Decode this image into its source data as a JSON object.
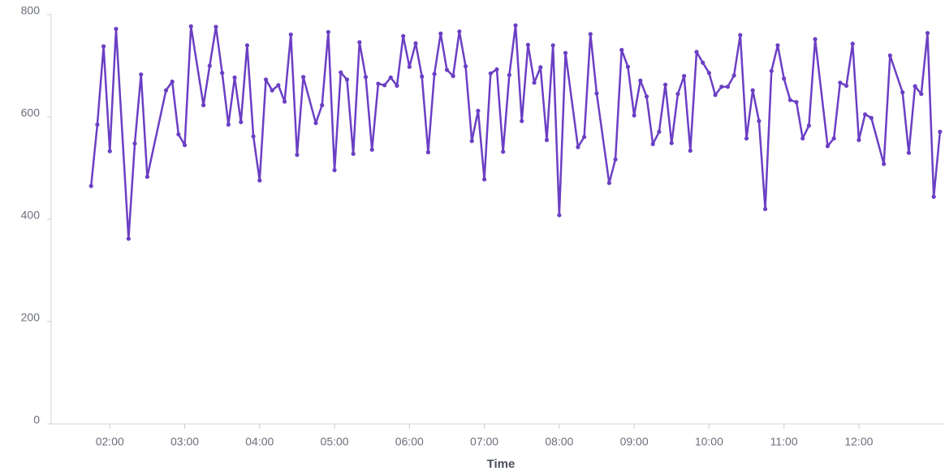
{
  "chart_data": {
    "type": "line",
    "x_label": "Time",
    "x": [
      "01:45",
      "01:50",
      "01:55",
      "02:00",
      "02:05",
      "02:15",
      "02:20",
      "02:25",
      "02:30",
      "02:45",
      "02:50",
      "02:55",
      "03:00",
      "03:05",
      "03:15",
      "03:20",
      "03:25",
      "03:30",
      "03:35",
      "03:40",
      "03:45",
      "03:50",
      "03:55",
      "04:00",
      "04:05",
      "04:10",
      "04:15",
      "04:20",
      "04:25",
      "04:30",
      "04:35",
      "04:45",
      "04:50",
      "04:55",
      "05:00",
      "05:05",
      "05:10",
      "05:15",
      "05:20",
      "05:25",
      "05:30",
      "05:35",
      "05:40",
      "05:45",
      "05:50",
      "05:55",
      "06:00",
      "06:05",
      "06:10",
      "06:15",
      "06:20",
      "06:25",
      "06:30",
      "06:35",
      "06:40",
      "06:45",
      "06:50",
      "06:55",
      "07:00",
      "07:05",
      "07:10",
      "07:15",
      "07:20",
      "07:25",
      "07:30",
      "07:35",
      "07:40",
      "07:45",
      "07:50",
      "07:55",
      "08:00",
      "08:05",
      "08:15",
      "08:20",
      "08:25",
      "08:30",
      "08:40",
      "08:45",
      "08:50",
      "08:55",
      "09:00",
      "09:05",
      "09:10",
      "09:15",
      "09:20",
      "09:25",
      "09:30",
      "09:35",
      "09:40",
      "09:45",
      "09:50",
      "09:55",
      "10:00",
      "10:05",
      "10:10",
      "10:15",
      "10:20",
      "10:25",
      "10:30",
      "10:35",
      "10:40",
      "10:45",
      "10:50",
      "10:55",
      "11:00",
      "11:05",
      "11:10",
      "11:15",
      "11:20",
      "11:25",
      "11:35",
      "11:40",
      "11:45",
      "11:50",
      "11:55",
      "12:00",
      "12:05",
      "12:10",
      "12:20",
      "12:25",
      "12:35",
      "12:40",
      "12:45",
      "12:50",
      "12:55",
      "13:00",
      "13:05"
    ],
    "values": [
      465,
      585,
      738,
      533,
      772,
      362,
      548,
      683,
      483,
      652,
      669,
      566,
      545,
      777,
      623,
      700,
      776,
      686,
      585,
      677,
      590,
      740,
      562,
      476,
      673,
      652,
      662,
      630,
      761,
      526,
      678,
      588,
      623,
      766,
      496,
      687,
      673,
      528,
      746,
      678,
      536,
      665,
      662,
      677,
      661,
      758,
      698,
      744,
      679,
      531,
      684,
      763,
      692,
      680,
      767,
      699,
      553,
      612,
      478,
      685,
      693,
      532,
      682,
      779,
      592,
      741,
      667,
      697,
      555,
      740,
      408,
      725,
      541,
      561,
      762,
      646,
      471,
      517,
      731,
      698,
      603,
      671,
      640,
      547,
      571,
      663,
      549,
      645,
      680,
      534,
      727,
      706,
      686,
      643,
      659,
      659,
      681,
      760,
      558,
      652,
      592,
      420,
      690,
      740,
      675,
      633,
      629,
      558,
      583,
      752,
      543,
      558,
      667,
      661,
      743,
      555,
      605,
      598,
      508,
      720,
      648,
      530,
      660,
      645,
      764,
      444,
      571
    ],
    "color": "#6b3fc4",
    "xlim": [
      "01:13",
      "13:09"
    ],
    "xticks": [
      "02:00",
      "03:00",
      "04:00",
      "05:00",
      "06:00",
      "07:00",
      "08:00",
      "09:00",
      "10:00",
      "11:00",
      "12:00"
    ],
    "ylim": [
      0,
      800
    ],
    "yticks": [
      0,
      200,
      400,
      600,
      800
    ],
    "grid": false,
    "markers": true
  }
}
